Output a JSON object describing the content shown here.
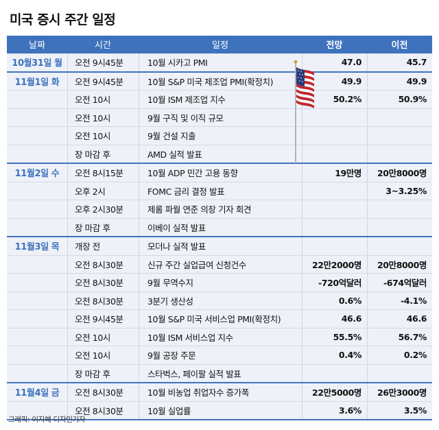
{
  "title": "미국 증시 주간 일정",
  "headers": {
    "date": "날짜",
    "time": "시간",
    "event": "일정",
    "forecast": "전망",
    "previous": "이전"
  },
  "groups": [
    {
      "date": "10월31일 월",
      "rows": [
        {
          "time": "오전 9시45분",
          "event": "10월 시카고 PMI",
          "forecast": "47.0",
          "previous": "45.7"
        }
      ]
    },
    {
      "date": "11월1일 화",
      "rows": [
        {
          "time": "오전 9시45분",
          "event": "10월 S&P 미국 제조업 PMI(확정치)",
          "forecast": "49.9",
          "previous": "49.9"
        },
        {
          "time": "오전 10시",
          "event": "10월 ISM 제조업 지수",
          "forecast": "50.2%",
          "previous": "50.9%"
        },
        {
          "time": "오전 10시",
          "event": "9월 구직 및 이직 규모",
          "forecast": "",
          "previous": ""
        },
        {
          "time": "오전 10시",
          "event": "9월 건설 지출",
          "forecast": "",
          "previous": ""
        },
        {
          "time": "장 마감 후",
          "event": "AMD 실적 발표",
          "forecast": "",
          "previous": ""
        }
      ]
    },
    {
      "date": "11월2일 수",
      "rows": [
        {
          "time": "오전 8시15분",
          "event": "10월 ADP 민간 고용 동향",
          "forecast": "19만명",
          "previous": "20만8000명"
        },
        {
          "time": "오후 2시",
          "event": "FOMC 금리 결정 발표",
          "forecast": "",
          "previous": "3~3.25%"
        },
        {
          "time": "오후 2시30분",
          "event": "제롬 파월 연준 의장 기자 회견",
          "forecast": "",
          "previous": ""
        },
        {
          "time": "장 마감 후",
          "event": "이베이 실적 발표",
          "forecast": "",
          "previous": ""
        }
      ]
    },
    {
      "date": "11월3일 목",
      "rows": [
        {
          "time": "개장 전",
          "event": "모더나 실적 발표",
          "forecast": "",
          "previous": ""
        },
        {
          "time": "오전 8시30분",
          "event": "신규 주간 실업급여 신청건수",
          "forecast": "22만2000명",
          "previous": "20만8000명"
        },
        {
          "time": "오전 8시30분",
          "event": "9월 무역수지",
          "forecast": "-720억달러",
          "previous": "-674억달러"
        },
        {
          "time": "오전 8시30분",
          "event": "3분기 생산성",
          "forecast": "0.6%",
          "previous": "-4.1%"
        },
        {
          "time": "오전 9시45분",
          "event": "10월 S&P 미국 서비스업 PMI(확정치)",
          "forecast": "46.6",
          "previous": "46.6"
        },
        {
          "time": "오전 10시",
          "event": "10월 ISM 서비스업 지수",
          "forecast": "55.5%",
          "previous": "56.7%"
        },
        {
          "time": "오전 10시",
          "event": "9월 공장 주문",
          "forecast": "0.4%",
          "previous": "0.2%"
        },
        {
          "time": "장 마감 후",
          "event": "스타벅스, 페이팔 실적 발표",
          "forecast": "",
          "previous": ""
        }
      ]
    },
    {
      "date": "11월4일 금",
      "rows": [
        {
          "time": "오전 8시30분",
          "event": "10월 비농업 취업자수 증가폭",
          "forecast": "22만5000명",
          "previous": "26만3000명"
        },
        {
          "time": "오전 8시30분",
          "event": "10월 실업률",
          "forecast": "3.6%",
          "previous": "3.5%"
        }
      ]
    }
  ],
  "credit": "그래픽: 이지혜 디자인기자",
  "colors": {
    "accent": "#3f72bd",
    "row_bg": "#eef1f8"
  },
  "icons": {
    "flag": "us-flag-icon"
  }
}
